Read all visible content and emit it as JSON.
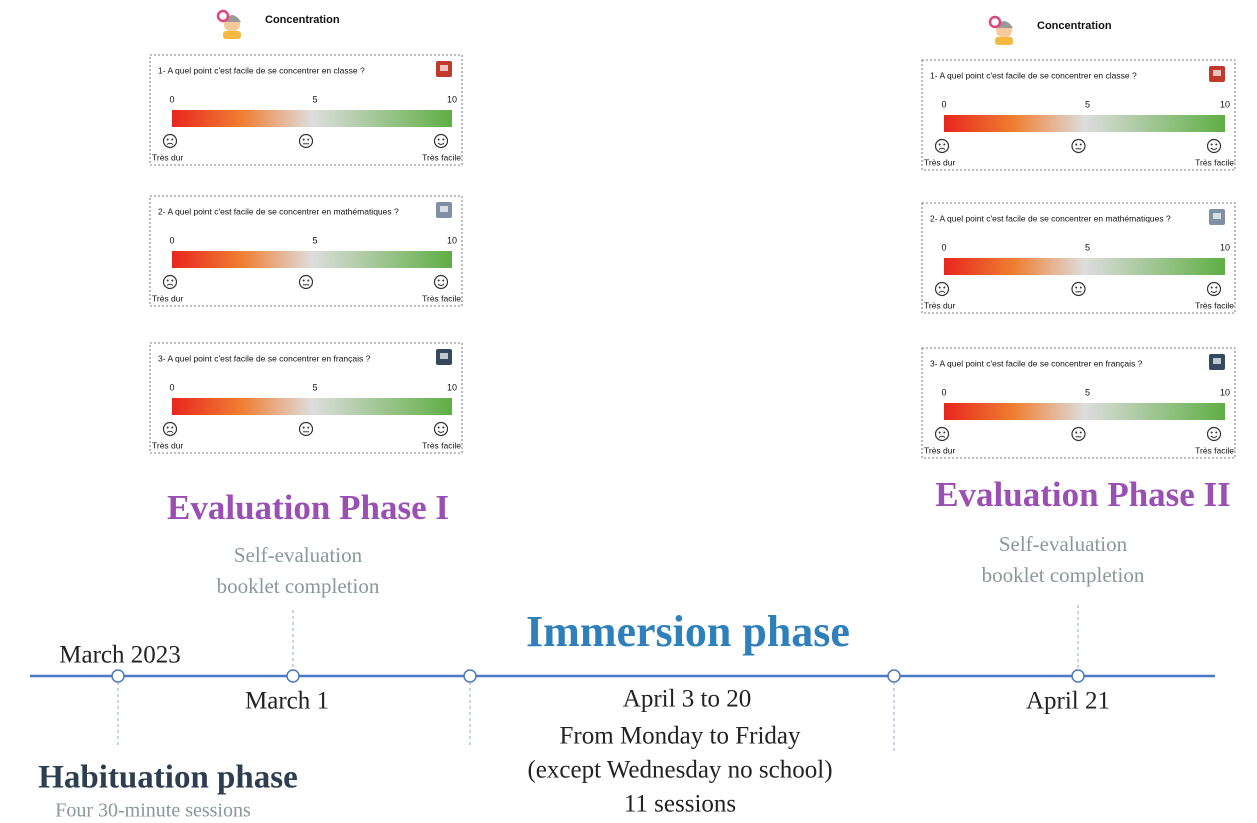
{
  "booklets": [
    {
      "title": "Concentration",
      "questions": [
        "1- A quel point c'est facile de se concentrer  en classe ?",
        "2- A quel point c'est facile de se concentrer en mathématiques ?",
        "3- A quel point c'est facile de se concentrer en français ?"
      ],
      "scale": {
        "ticks": [
          0,
          5,
          10
        ],
        "low_label": "Très dur",
        "high_label": "Très facile"
      }
    },
    {
      "title": "Concentration",
      "questions": [
        "1- A quel point c'est facile de se concentrer  en classe ?",
        "2- A quel point c'est facile de se concentrer en mathématiques ?",
        "3- A quel point c'est facile de se concentrer en français ?"
      ],
      "scale": {
        "ticks": [
          0,
          5,
          10
        ],
        "low_label": "Très dur",
        "high_label": "Très facile"
      }
    }
  ],
  "evaluation_1": {
    "title": "Evaluation Phase I",
    "description": [
      "Self-evaluation",
      "booklet completion"
    ],
    "date": "March 1"
  },
  "evaluation_2": {
    "title": "Evaluation Phase II",
    "description": [
      "Self-evaluation",
      "booklet completion"
    ],
    "date": "April 21"
  },
  "immersion": {
    "title": "Immersion phase",
    "details": [
      "April 3 to 20",
      "From Monday to Friday",
      "(except Wednesday no school)",
      "11 sessions"
    ]
  },
  "habituation": {
    "title": "Habituation phase",
    "description": "Four 30-minute sessions"
  },
  "timeline_start": "March 2023"
}
